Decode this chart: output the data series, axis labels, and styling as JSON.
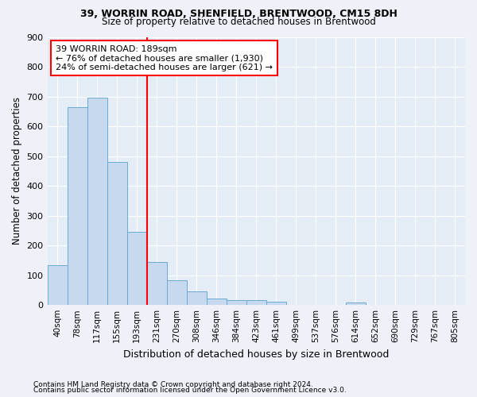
{
  "title1": "39, WORRIN ROAD, SHENFIELD, BRENTWOOD, CM15 8DH",
  "title2": "Size of property relative to detached houses in Brentwood",
  "xlabel": "Distribution of detached houses by size in Brentwood",
  "ylabel": "Number of detached properties",
  "categories": [
    "40sqm",
    "78sqm",
    "117sqm",
    "155sqm",
    "193sqm",
    "231sqm",
    "270sqm",
    "308sqm",
    "346sqm",
    "384sqm",
    "423sqm",
    "461sqm",
    "499sqm",
    "537sqm",
    "576sqm",
    "614sqm",
    "652sqm",
    "690sqm",
    "729sqm",
    "767sqm",
    "805sqm"
  ],
  "values": [
    135,
    665,
    695,
    480,
    245,
    145,
    83,
    47,
    22,
    17,
    17,
    10,
    0,
    0,
    0,
    8,
    0,
    0,
    0,
    0,
    0
  ],
  "bar_color": "#c6d9ee",
  "bar_edge_color": "#6aaad4",
  "vline_x_idx": 4,
  "vline_color": "red",
  "annotation_line1": "39 WORRIN ROAD: 189sqm",
  "annotation_line2": "← 76% of detached houses are smaller (1,930)",
  "annotation_line3": "24% of semi-detached houses are larger (621) →",
  "annotation_box_color": "white",
  "annotation_box_edge_color": "red",
  "ylim": [
    0,
    900
  ],
  "yticks": [
    0,
    100,
    200,
    300,
    400,
    500,
    600,
    700,
    800,
    900
  ],
  "footnote1": "Contains HM Land Registry data © Crown copyright and database right 2024.",
  "footnote2": "Contains public sector information licensed under the Open Government Licence v3.0.",
  "bg_color": "#eef2f8",
  "plot_bg_color": "#e4ecf6"
}
